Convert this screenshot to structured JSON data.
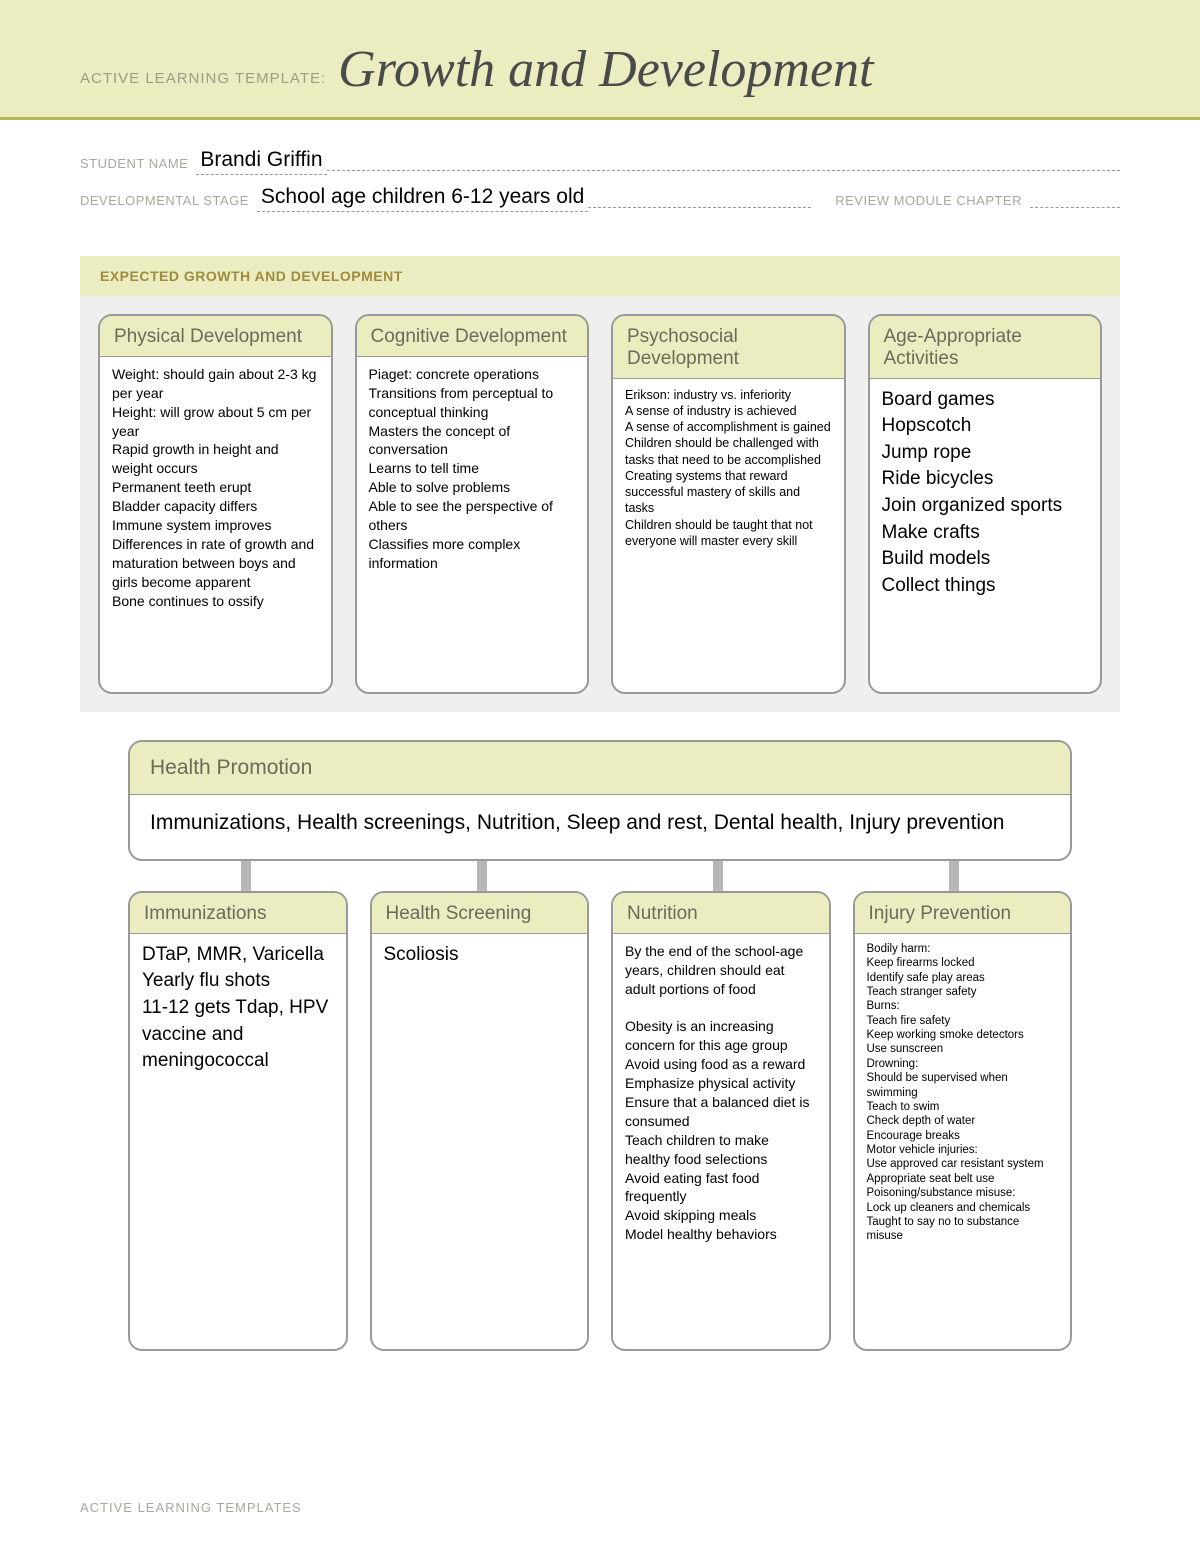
{
  "colors": {
    "header_band": "#ebedc1",
    "header_rule": "#b5b858",
    "card_header_bg": "#ebedc1",
    "card_border": "#999999",
    "section_gray": "#efefed",
    "label_muted": "#a9a79c",
    "section_title": "#a08a3d",
    "card_title": "#6b6b5a",
    "connector": "#b7b7b7",
    "background": "#ffffff"
  },
  "header": {
    "template_label": "ACTIVE LEARNING TEMPLATE:",
    "title": "Growth and Development"
  },
  "fields": {
    "student_label": "STUDENT NAME",
    "student_value": "Brandi Griffin",
    "stage_label": "DEVELOPMENTAL STAGE",
    "stage_value": "School age children 6-12 years old",
    "review_label": "REVIEW MODULE CHAPTER"
  },
  "section1": {
    "title": "EXPECTED GROWTH AND DEVELOPMENT",
    "cards": [
      {
        "title": "Physical Development",
        "body": "Weight: should gain about 2-3 kg per year\nHeight: will grow about 5 cm per year\nRapid growth in height and weight occurs\nPermanent teeth erupt\nBladder capacity differs\nImmune system improves\nDifferences in rate of growth and maturation between boys and girls become apparent\nBone continues to ossify",
        "size": "normal"
      },
      {
        "title": "Cognitive Development",
        "body": "Piaget: concrete operations\nTransitions from perceptual to conceptual thinking\nMasters the concept of conversation\nLearns to tell time\nAble to solve problems\nAble to see the perspective of others\nClassifies more complex information",
        "size": "normal"
      },
      {
        "title": "Psychosocial Development",
        "body": "Erikson: industry vs. inferiority\nA sense of industry is achieved\nA sense of accomplishment is gained\nChildren should be challenged with tasks that need to be accomplished\nCreating systems that reward successful mastery of skills and tasks\nChildren should be taught that not everyone will master every skill",
        "size": "small"
      },
      {
        "title": "Age-Appropriate Activities",
        "body": "Board games\nHopscotch\nJump rope\nRide bicycles\nJoin organized sports\nMake crafts\nBuild models\nCollect things",
        "size": "large"
      }
    ]
  },
  "healthPromotion": {
    "title": "Health Promotion",
    "body": "Immunizations, Health screenings, Nutrition, Sleep and rest, Dental health, Injury prevention"
  },
  "section2": {
    "cards": [
      {
        "title": "Immunizations",
        "body": "DTaP, MMR, Varicella\nYearly flu shots\n11-12 gets Tdap, HPV vaccine and meningococcal",
        "size": "large"
      },
      {
        "title": "Health Screening",
        "body": "Scoliosis",
        "size": "large"
      },
      {
        "title": "Nutrition",
        "body": "By the end of the school-age years, children should eat adult portions of food\n\nObesity is an increasing concern for this age group\nAvoid using food as a reward\nEmphasize physical activity\nEnsure that a balanced diet is consumed\nTeach children to make healthy food selections\nAvoid eating fast food frequently\nAvoid skipping meals\nModel healthy behaviors",
        "size": "normal"
      },
      {
        "title": "Injury Prevention",
        "body": "Bodily harm:\nKeep firearms locked\nIdentify safe play areas\nTeach stranger safety\nBurns:\nTeach fire safety\nKeep working smoke detectors\nUse sunscreen\nDrowning:\nShould be supervised when swimming\nTeach to swim\nCheck depth of water\nEncourage breaks\nMotor vehicle injuries:\nUse approved car resistant system\nAppropriate seat belt use\nPoisoning/substance misuse:\nLock up cleaners and chemicals\nTaught to say no to substance misuse",
        "size": "tiny"
      }
    ]
  },
  "footer": "ACTIVE LEARNING TEMPLATES"
}
